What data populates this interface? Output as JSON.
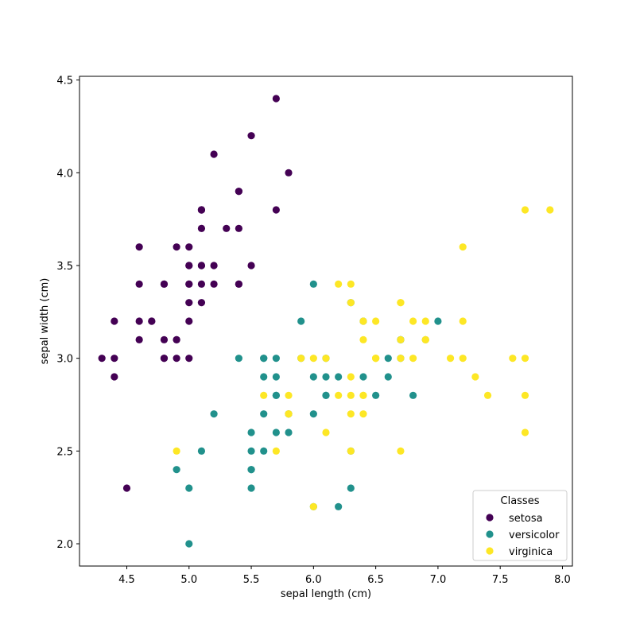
{
  "chart_data": {
    "type": "scatter",
    "title": "",
    "xlabel": "sepal length (cm)",
    "ylabel": "sepal width (cm)",
    "xlim": [
      4.12,
      8.08
    ],
    "ylim": [
      1.88,
      4.52
    ],
    "xticks": [
      4.5,
      5.0,
      5.5,
      6.0,
      6.5,
      7.0,
      7.5,
      8.0
    ],
    "xtick_labels": [
      "4.5",
      "5.0",
      "5.5",
      "6.0",
      "6.5",
      "7.0",
      "7.5",
      "8.0"
    ],
    "yticks": [
      2.0,
      2.5,
      3.0,
      3.5,
      4.0,
      4.5
    ],
    "ytick_labels": [
      "2.0",
      "2.5",
      "3.0",
      "3.5",
      "4.0",
      "4.5"
    ],
    "grid": false,
    "legend": {
      "title": "Classes",
      "position": "lower-right"
    },
    "series": [
      {
        "name": "setosa",
        "color": "#440154",
        "points": [
          [
            5.1,
            3.5
          ],
          [
            4.9,
            3.0
          ],
          [
            4.7,
            3.2
          ],
          [
            4.6,
            3.1
          ],
          [
            5.0,
            3.6
          ],
          [
            5.4,
            3.9
          ],
          [
            4.6,
            3.4
          ],
          [
            5.0,
            3.4
          ],
          [
            4.4,
            2.9
          ],
          [
            4.9,
            3.1
          ],
          [
            5.4,
            3.7
          ],
          [
            4.8,
            3.4
          ],
          [
            4.8,
            3.0
          ],
          [
            4.3,
            3.0
          ],
          [
            5.8,
            4.0
          ],
          [
            5.7,
            4.4
          ],
          [
            5.4,
            3.9
          ],
          [
            5.1,
            3.5
          ],
          [
            5.7,
            3.8
          ],
          [
            5.1,
            3.8
          ],
          [
            5.4,
            3.4
          ],
          [
            5.1,
            3.7
          ],
          [
            4.6,
            3.6
          ],
          [
            5.1,
            3.3
          ],
          [
            4.8,
            3.4
          ],
          [
            5.0,
            3.0
          ],
          [
            5.0,
            3.4
          ],
          [
            5.2,
            3.5
          ],
          [
            5.2,
            3.4
          ],
          [
            4.7,
            3.2
          ],
          [
            4.8,
            3.1
          ],
          [
            5.4,
            3.4
          ],
          [
            5.2,
            4.1
          ],
          [
            5.5,
            4.2
          ],
          [
            4.9,
            3.1
          ],
          [
            5.0,
            3.2
          ],
          [
            5.5,
            3.5
          ],
          [
            4.9,
            3.6
          ],
          [
            4.4,
            3.0
          ],
          [
            5.1,
            3.4
          ],
          [
            5.0,
            3.5
          ],
          [
            4.5,
            2.3
          ],
          [
            4.4,
            3.2
          ],
          [
            5.0,
            3.5
          ],
          [
            5.1,
            3.8
          ],
          [
            4.8,
            3.0
          ],
          [
            5.1,
            3.8
          ],
          [
            4.6,
            3.2
          ],
          [
            5.3,
            3.7
          ],
          [
            5.0,
            3.3
          ]
        ]
      },
      {
        "name": "versicolor",
        "color": "#21918c",
        "points": [
          [
            7.0,
            3.2
          ],
          [
            6.4,
            3.2
          ],
          [
            6.9,
            3.1
          ],
          [
            5.5,
            2.3
          ],
          [
            6.5,
            2.8
          ],
          [
            5.7,
            2.8
          ],
          [
            6.3,
            3.3
          ],
          [
            4.9,
            2.4
          ],
          [
            6.6,
            2.9
          ],
          [
            5.2,
            2.7
          ],
          [
            5.0,
            2.0
          ],
          [
            5.9,
            3.0
          ],
          [
            6.0,
            2.2
          ],
          [
            6.1,
            2.9
          ],
          [
            5.6,
            2.9
          ],
          [
            6.7,
            3.1
          ],
          [
            5.6,
            3.0
          ],
          [
            5.8,
            2.7
          ],
          [
            6.2,
            2.2
          ],
          [
            5.6,
            2.5
          ],
          [
            5.9,
            3.2
          ],
          [
            6.1,
            2.8
          ],
          [
            6.3,
            2.5
          ],
          [
            6.1,
            2.8
          ],
          [
            6.4,
            2.9
          ],
          [
            6.6,
            3.0
          ],
          [
            6.8,
            2.8
          ],
          [
            6.7,
            3.0
          ],
          [
            6.0,
            2.9
          ],
          [
            5.7,
            2.6
          ],
          [
            5.5,
            2.4
          ],
          [
            5.5,
            2.4
          ],
          [
            5.8,
            2.7
          ],
          [
            6.0,
            2.7
          ],
          [
            5.4,
            3.0
          ],
          [
            6.0,
            3.4
          ],
          [
            6.7,
            3.1
          ],
          [
            6.3,
            2.3
          ],
          [
            5.6,
            3.0
          ],
          [
            5.5,
            2.5
          ],
          [
            5.5,
            2.6
          ],
          [
            6.1,
            3.0
          ],
          [
            5.8,
            2.6
          ],
          [
            5.0,
            2.3
          ],
          [
            5.6,
            2.7
          ],
          [
            5.7,
            3.0
          ],
          [
            5.7,
            2.9
          ],
          [
            6.2,
            2.9
          ],
          [
            5.1,
            2.5
          ],
          [
            5.7,
            2.8
          ]
        ]
      },
      {
        "name": "virginica",
        "color": "#fde725",
        "points": [
          [
            6.3,
            3.3
          ],
          [
            5.8,
            2.7
          ],
          [
            7.1,
            3.0
          ],
          [
            6.3,
            2.9
          ],
          [
            6.5,
            3.0
          ],
          [
            7.6,
            3.0
          ],
          [
            4.9,
            2.5
          ],
          [
            7.3,
            2.9
          ],
          [
            6.7,
            2.5
          ],
          [
            7.2,
            3.6
          ],
          [
            6.5,
            3.2
          ],
          [
            6.4,
            2.7
          ],
          [
            6.8,
            3.0
          ],
          [
            5.7,
            2.5
          ],
          [
            5.8,
            2.8
          ],
          [
            6.4,
            3.2
          ],
          [
            6.5,
            3.0
          ],
          [
            7.7,
            3.8
          ],
          [
            7.7,
            2.6
          ],
          [
            6.0,
            2.2
          ],
          [
            6.9,
            3.2
          ],
          [
            5.6,
            2.8
          ],
          [
            7.7,
            2.8
          ],
          [
            6.3,
            2.7
          ],
          [
            6.7,
            3.3
          ],
          [
            7.2,
            3.2
          ],
          [
            6.2,
            2.8
          ],
          [
            6.1,
            3.0
          ],
          [
            6.4,
            2.8
          ],
          [
            7.2,
            3.0
          ],
          [
            7.4,
            2.8
          ],
          [
            7.9,
            3.8
          ],
          [
            6.4,
            2.8
          ],
          [
            6.3,
            2.8
          ],
          [
            6.1,
            2.6
          ],
          [
            7.7,
            3.0
          ],
          [
            6.3,
            3.4
          ],
          [
            6.4,
            3.1
          ],
          [
            6.0,
            3.0
          ],
          [
            6.9,
            3.1
          ],
          [
            6.7,
            3.1
          ],
          [
            6.9,
            3.1
          ],
          [
            5.8,
            2.7
          ],
          [
            6.8,
            3.2
          ],
          [
            6.7,
            3.3
          ],
          [
            6.7,
            3.0
          ],
          [
            6.3,
            2.5
          ],
          [
            6.5,
            3.0
          ],
          [
            6.2,
            3.4
          ],
          [
            5.9,
            3.0
          ]
        ]
      }
    ]
  }
}
